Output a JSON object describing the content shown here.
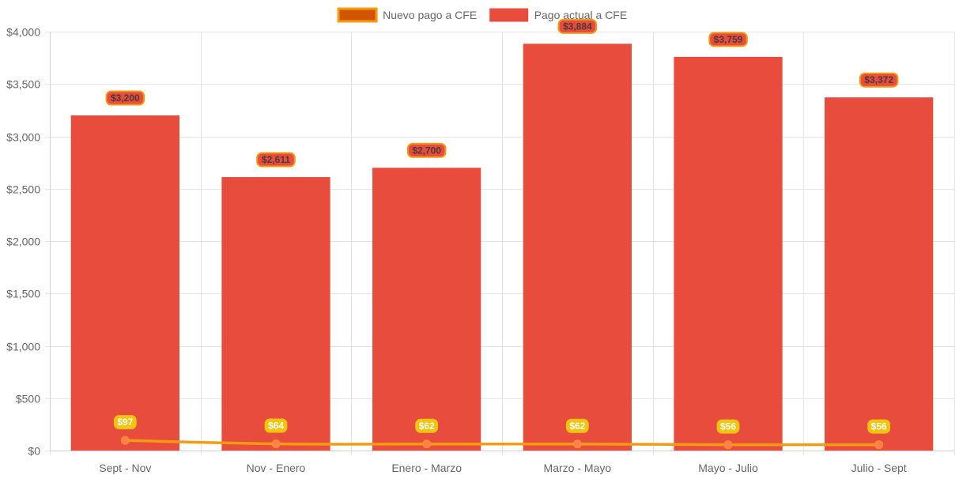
{
  "chart_data": {
    "type": "bar",
    "categories": [
      "Sept - Nov",
      "Nov - Enero",
      "Enero - Marzo",
      "Marzo - Mayo",
      "Mayo - Julio",
      "Julio - Sept"
    ],
    "series": [
      {
        "name": "Nuevo pago a CFE",
        "kind": "line",
        "values": [
          97,
          64,
          62,
          62,
          56,
          56
        ],
        "labels": [
          "$97",
          "$64",
          "$62",
          "$62",
          "$56",
          "$56"
        ],
        "color": "#f39c12",
        "fill": "#d35400",
        "point_color": "#ff7f50",
        "label_bg": "#f1c40f"
      },
      {
        "name": "Pago actual a CFE",
        "kind": "bar",
        "values": [
          3200,
          2611,
          2700,
          3884,
          3759,
          3372
        ],
        "labels": [
          "$3,200",
          "$2,611",
          "$2,700",
          "$3,884",
          "$3,759",
          "$3,372"
        ],
        "color": "#e74c3c",
        "label_border": "#f39c12"
      }
    ],
    "ylim": [
      0,
      4000
    ],
    "yticks": [
      0,
      500,
      1000,
      1500,
      2000,
      2500,
      3000,
      3500,
      4000
    ],
    "ytick_labels": [
      "$0",
      "$500",
      "$1,000",
      "$1,500",
      "$2,000",
      "$2,500",
      "$3,000",
      "$3,500",
      "$4,000"
    ],
    "title": "",
    "xlabel": "",
    "ylabel": "",
    "grid": true,
    "legend_position": "top-center"
  }
}
